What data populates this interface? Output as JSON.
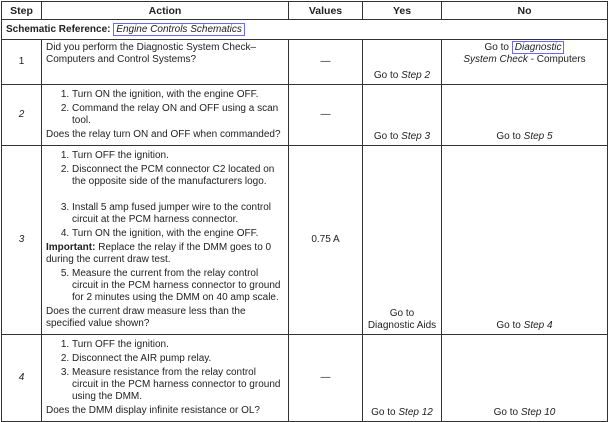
{
  "headers": [
    "Step",
    "Action",
    "Values",
    "Yes",
    "No"
  ],
  "schematic": {
    "label": "Schematic Reference:",
    "link": "Engine Controls Schematics"
  },
  "rows": [
    {
      "step": "1",
      "question": "Did you perform the Diagnostic System Check–Computers and Control Systems?",
      "value": "—",
      "yes_prefix": "Go to",
      "yes_link": "Step 2",
      "no_prefix": "Go to",
      "no_link1": "Diagnostic",
      "no_link2": "System Check",
      "no_suffix": "- Computers"
    },
    {
      "step": "2",
      "items": [
        "Turn ON the ignition, with the engine OFF.",
        "Command the relay ON and OFF using a scan tool."
      ],
      "question": "Does the relay turn ON and OFF when commanded?",
      "value": "—",
      "yes_prefix": "Go to",
      "yes_link": "Step 3",
      "no_prefix": "Go to",
      "no_link": "Step 5"
    },
    {
      "step": "3",
      "items": [
        "Turn OFF the ignition.",
        "Disconnect the PCM connector C2 located on the opposite side of the manufacturers logo.",
        "Install 5 amp fused jumper wire to the control circuit at the PCM harness connector.",
        "Turn ON the ignition, with the engine OFF."
      ],
      "important_label": "Important:",
      "important_text": "Replace the relay if the DMM goes to 0 during the current draw test.",
      "item5": "Measure the current from the relay control circuit in the PCM harness connector to ground for 2 minutes using the DMM on 40 amp scale.",
      "question": "Does the current draw measure less than the specified value shown?",
      "value": "0.75 A",
      "yes_line1": "Go to",
      "yes_line2": "Diagnostic Aids",
      "no_prefix": "Go to",
      "no_link": "Step 4"
    },
    {
      "step": "4",
      "items": [
        "Turn OFF the ignition.",
        "Disconnect the AIR pump relay.",
        "Measure resistance from the relay control circuit in the PCM harness connector to ground using the DMM."
      ],
      "question": "Does the DMM display infinite resistance or OL?",
      "value": "—",
      "yes_prefix": "Go to",
      "yes_link": "Step 12",
      "no_prefix": "Go to",
      "no_link": "Step 10"
    }
  ]
}
